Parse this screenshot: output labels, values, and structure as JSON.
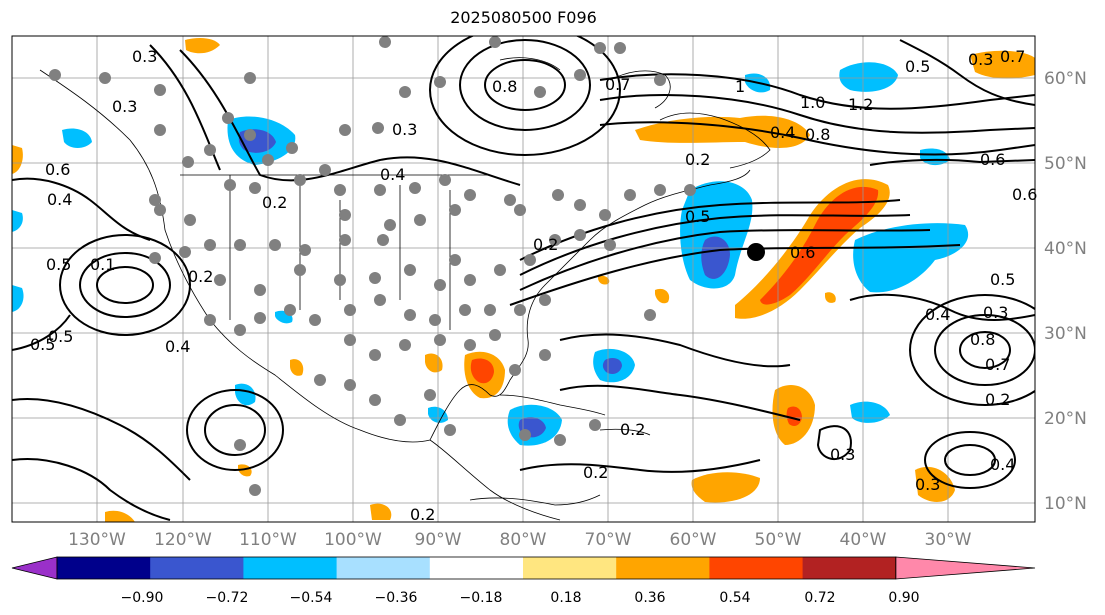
{
  "title": "2025080500 F096",
  "axes": {
    "lon_labels": [
      "130°W",
      "120°W",
      "110°W",
      "100°W",
      "90°W",
      "80°W",
      "70°W",
      "60°W",
      "50°W",
      "40°W",
      "30°W"
    ],
    "lat_labels": [
      "60°N",
      "50°N",
      "40°N",
      "30°N",
      "20°N",
      "10°N"
    ],
    "label_color": "#808080"
  },
  "colorbar": {
    "ticks": [
      "−0.90",
      "−0.72",
      "−0.54",
      "−0.36",
      "−0.18",
      "0.18",
      "0.36",
      "0.54",
      "0.72",
      "0.90"
    ],
    "colors": [
      "#9a30c9",
      "#00008b",
      "#3a56cf",
      "#00bfff",
      "#a8e0ff",
      "#ffffff",
      "#ffe680",
      "#ffa500",
      "#ff4500",
      "#b22222",
      "#ff88aa"
    ],
    "extend": "both"
  },
  "contour_labels": [
    "0.3",
    "0.8",
    "0.7",
    "1",
    "1.0",
    "1.2",
    "0.5",
    "0.3",
    "0.7",
    "0.3",
    "0.4",
    "0.3",
    "0.8",
    "0.2",
    "0.4",
    "0.6",
    "0.4",
    "0.2",
    "0.5",
    "0.5",
    "0.6",
    "0.6",
    "0.1",
    "0.2",
    "0.5",
    "0.4",
    "0.5",
    "0.6",
    "0.4",
    "0.5",
    "0.3",
    "0.2",
    "0.8",
    "0.7",
    "0.2",
    "0.4",
    "0.3",
    "0.3",
    "0.2",
    "0.2",
    "0.2"
  ],
  "marker": {
    "label": "storm-center",
    "color": "#000000"
  },
  "station_marker_color": "#808080"
}
